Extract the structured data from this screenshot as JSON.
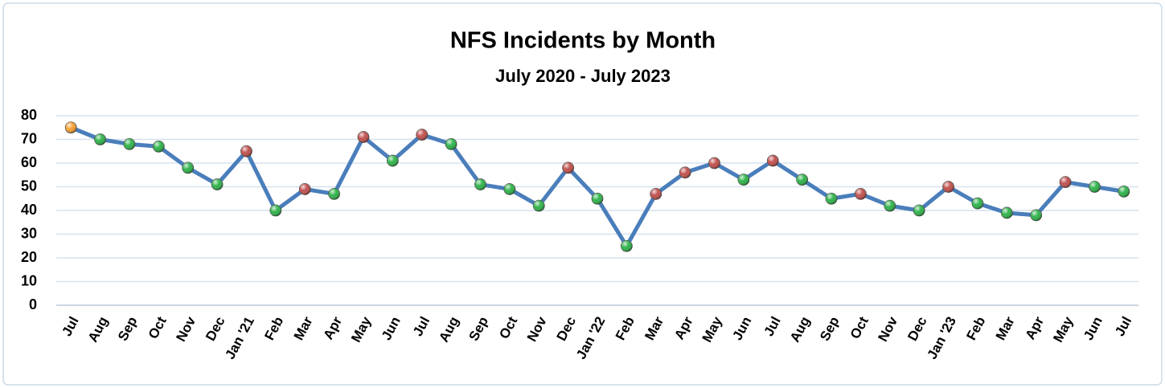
{
  "chart_data": {
    "type": "line",
    "title": "NFS Incidents by Month",
    "subtitle": "July 2020 - July 2023",
    "categories": [
      "Jul",
      "Aug",
      "Sep",
      "Oct",
      "Nov",
      "Dec",
      "Jan '21",
      "Feb",
      "Mar",
      "Apr",
      "May",
      "Jun",
      "Jul",
      "Aug",
      "Sep",
      "Oct",
      "Nov",
      "Dec",
      "Jan '22",
      "Feb",
      "Mar",
      "Apr",
      "May",
      "Jun",
      "Jul",
      "Aug",
      "Sep",
      "Oct",
      "Nov",
      "Dec",
      "Jan '23",
      "Feb",
      "Mar",
      "Apr",
      "May",
      "Jun",
      "Jul"
    ],
    "values": [
      75,
      70,
      68,
      67,
      58,
      51,
      65,
      40,
      49,
      47,
      71,
      61,
      72,
      68,
      51,
      49,
      42,
      58,
      45,
      25,
      47,
      56,
      60,
      53,
      61,
      53,
      45,
      47,
      42,
      40,
      50,
      43,
      39,
      38,
      52,
      50,
      48
    ],
    "color": "#4a7ebb",
    "first_marker_color": "#f5a030",
    "up_marker_color": "#c0504d",
    "down_marker_color": "#2fb34a",
    "ylim": [
      0,
      80
    ],
    "yticks": [
      0,
      10,
      20,
      30,
      40,
      50,
      60,
      70,
      80
    ],
    "grid": true
  }
}
